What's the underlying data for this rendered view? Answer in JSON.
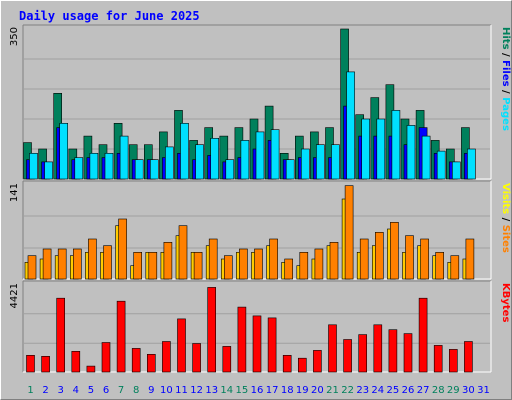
{
  "chart_data": {
    "type": "bar",
    "title": "Daily usage for June 2025",
    "title_color": "#0000ff",
    "categories": [
      "1",
      "2",
      "3",
      "4",
      "5",
      "6",
      "7",
      "8",
      "9",
      "10",
      "11",
      "12",
      "13",
      "14",
      "15",
      "16",
      "17",
      "18",
      "19",
      "20",
      "21",
      "22",
      "23",
      "24",
      "25",
      "26",
      "27",
      "28",
      "29",
      "30",
      "31"
    ],
    "weekend_days": [
      "1",
      "7",
      "8",
      "14",
      "15",
      "21",
      "22",
      "28",
      "29"
    ],
    "weekend_color": "#00805c",
    "weekday_color": "#0000ff",
    "panels": [
      {
        "ylim": [
          0,
          350
        ],
        "max_label": "350",
        "right_label": [
          {
            "text": "Hits",
            "color": "#00805c"
          },
          {
            "text": " / ",
            "color": "#000000"
          },
          {
            "text": "Files",
            "color": "#0000ff"
          },
          {
            "text": " / ",
            "color": "#000000"
          },
          {
            "text": "Pages",
            "color": "#00e0ff"
          }
        ],
        "series": [
          {
            "name": "Hits",
            "color": "#00805c",
            "values": [
              85,
              70,
              200,
              70,
              100,
              80,
              130,
              80,
              80,
              110,
              160,
              90,
              120,
              100,
              120,
              140,
              170,
              60,
              100,
              110,
              120,
              350,
              150,
              190,
              220,
              140,
              160,
              90,
              70,
              120
            ]
          },
          {
            "name": "Files",
            "color": "#0000ff",
            "values": [
              45,
              40,
              120,
              45,
              50,
              50,
              60,
              45,
              45,
              50,
              60,
              45,
              55,
              40,
              50,
              70,
              90,
              45,
              50,
              50,
              50,
              170,
              100,
              100,
              100,
              80,
              120,
              60,
              40,
              60
            ]
          },
          {
            "name": "Pages",
            "color": "#00e0ff",
            "values": [
              60,
              40,
              130,
              50,
              60,
              60,
              100,
              45,
              45,
              75,
              130,
              80,
              95,
              45,
              90,
              110,
              115,
              45,
              70,
              80,
              80,
              250,
              140,
              140,
              160,
              125,
              100,
              65,
              40,
              70
            ]
          }
        ]
      },
      {
        "ylim": [
          0,
          141
        ],
        "max_label": "141",
        "right_label": [
          {
            "text": "Visits",
            "color": "#ffff00"
          },
          {
            "text": " / ",
            "color": "#000000"
          },
          {
            "text": "Sites",
            "color": "#ff8000"
          }
        ],
        "series": [
          {
            "name": "Visits",
            "color": "#ffcc00",
            "values": [
              25,
              30,
              35,
              35,
              40,
              40,
              80,
              20,
              40,
              40,
              65,
              40,
              50,
              30,
              40,
              40,
              50,
              25,
              20,
              30,
              50,
              120,
              40,
              50,
              75,
              40,
              50,
              35,
              25,
              30
            ]
          },
          {
            "name": "Sites",
            "color": "#ff8000",
            "values": [
              35,
              45,
              45,
              45,
              60,
              50,
              90,
              40,
              40,
              55,
              80,
              40,
              60,
              35,
              45,
              45,
              60,
              30,
              40,
              45,
              55,
              140,
              60,
              70,
              85,
              65,
              60,
              40,
              35,
              60
            ]
          }
        ]
      },
      {
        "ylim": [
          0,
          4421
        ],
        "max_label": "4421",
        "right_label": [
          {
            "text": "KBytes",
            "color": "#ff0000"
          }
        ],
        "series": [
          {
            "name": "KBytes",
            "color": "#ff0000",
            "values": [
              850,
              800,
              3750,
              1050,
              300,
              1500,
              3600,
              1200,
              900,
              1550,
              2700,
              1450,
              4300,
              1300,
              3300,
              2850,
              2750,
              850,
              700,
              1100,
              2400,
              1650,
              1900,
              2400,
              2150,
              1950,
              3750,
              1350,
              1150,
              1550
            ]
          }
        ]
      }
    ]
  }
}
